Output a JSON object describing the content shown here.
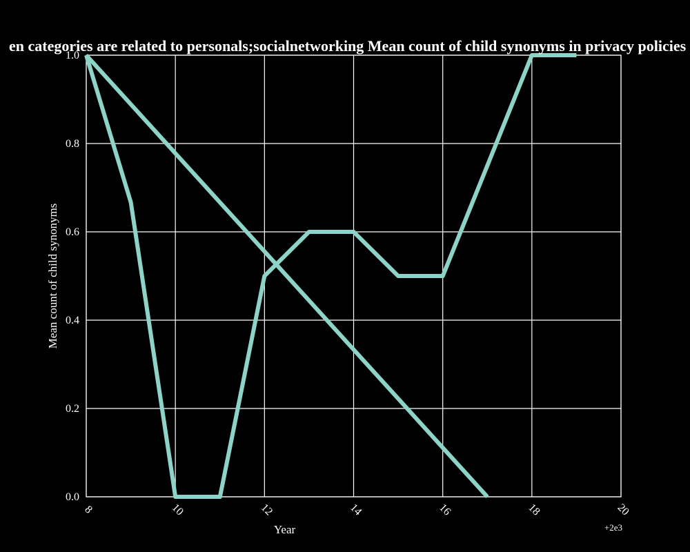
{
  "chart_data": {
    "type": "line",
    "title": "en categories are related to personals;socialnetworking Mean count of child synonyms in privacy policies b",
    "xlabel": "Year",
    "ylabel": "Mean count of child synonyms",
    "x_offset_label": "+2e3",
    "xlim": [
      8,
      20
    ],
    "ylim": [
      0.0,
      1.0
    ],
    "x_ticks": [
      8,
      10,
      12,
      14,
      16,
      18,
      20
    ],
    "x_tick_labels": [
      "8",
      "10",
      "12",
      "14",
      "16",
      "18",
      "20"
    ],
    "y_ticks": [
      0.0,
      0.2,
      0.4,
      0.6,
      0.8,
      1.0
    ],
    "y_tick_labels": [
      "0.0",
      "0.2",
      "0.4",
      "0.6",
      "0.8",
      "1.0"
    ],
    "grid": true,
    "background": "#000000",
    "series": [
      {
        "color": "#8dd3c7",
        "x": [
          8,
          9,
          10,
          11,
          12,
          13,
          14,
          15,
          16,
          17,
          18,
          19
        ],
        "values": [
          1.0,
          0.667,
          0.0,
          0.0,
          0.5,
          0.6,
          0.6,
          0.5,
          0.5,
          0.75,
          1.0,
          1.0
        ]
      },
      {
        "color": "#8dd3c7",
        "x": [
          8,
          17
        ],
        "values": [
          1.0,
          0.0
        ]
      }
    ]
  }
}
